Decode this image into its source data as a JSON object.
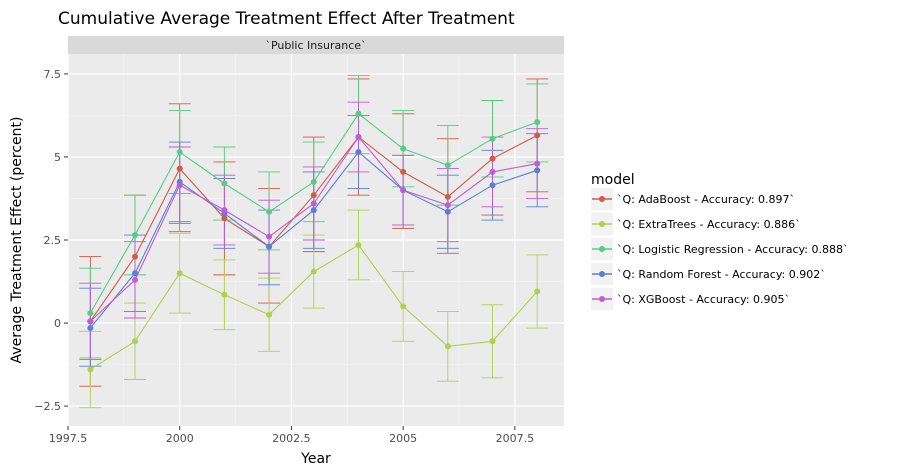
{
  "chart_data": {
    "type": "line",
    "title": "Cumulative Average Treatment Effect After Treatment",
    "facet_label": "`Public Insurance`",
    "xlabel": "Year",
    "ylabel": "Average Treatment Effect (percent)",
    "xlim": [
      1997.5,
      2008.6
    ],
    "ylim": [
      -3.1,
      8.1
    ],
    "x_ticks": [
      1997.5,
      2000,
      2002.5,
      2005,
      2007.5
    ],
    "x_tick_labels": [
      "1997.5",
      "2000",
      "2002.5",
      "2005",
      "2007.5"
    ],
    "y_ticks": [
      -2.5,
      0,
      2.5,
      5,
      7.5
    ],
    "y_tick_labels": [
      "−2.5",
      "0",
      "2.5",
      "5",
      "7.5"
    ],
    "grid": true,
    "legend": {
      "title": "model",
      "position": "right"
    },
    "x": [
      1998,
      1999,
      2000,
      2001,
      2002,
      2003,
      2004,
      2005,
      2006,
      2007,
      2008
    ],
    "series": [
      {
        "name": "`Q: AdaBoost - Accuracy: 0.897`",
        "color": "#d45a45",
        "values": [
          0.05,
          2.0,
          4.65,
          3.15,
          2.3,
          3.85,
          5.6,
          4.55,
          3.8,
          4.95,
          5.65
        ],
        "lower": [
          -1.9,
          0.15,
          2.75,
          1.45,
          0.6,
          2.15,
          3.85,
          2.85,
          2.1,
          3.25,
          3.95
        ],
        "upper": [
          2.0,
          3.85,
          6.6,
          4.85,
          4.05,
          5.6,
          7.35,
          6.3,
          5.55,
          6.7,
          7.35
        ]
      },
      {
        "name": "`Q: ExtraTrees - Accuracy: 0.886`",
        "color": "#b3cf4e",
        "values": [
          -1.4,
          -0.55,
          1.5,
          0.85,
          0.25,
          1.55,
          2.35,
          0.5,
          -0.7,
          -0.55,
          0.95
        ],
        "lower": [
          -2.55,
          -1.7,
          0.3,
          -0.2,
          -0.85,
          0.45,
          1.3,
          -0.55,
          -1.75,
          -1.65,
          -0.15
        ],
        "upper": [
          -0.25,
          0.6,
          2.7,
          1.9,
          1.35,
          2.65,
          3.4,
          1.55,
          0.35,
          0.55,
          2.05
        ]
      },
      {
        "name": "`Q: Logistic Regression - Accuracy: 0.888`",
        "color": "#52d07f",
        "values": [
          0.3,
          2.65,
          5.15,
          4.2,
          3.35,
          4.25,
          6.3,
          5.25,
          4.75,
          5.55,
          6.05
        ],
        "lower": [
          -1.05,
          1.45,
          3.9,
          3.1,
          2.2,
          3.05,
          5.1,
          4.1,
          3.55,
          4.4,
          4.85
        ],
        "upper": [
          1.65,
          3.85,
          6.4,
          5.3,
          4.55,
          5.45,
          7.45,
          6.4,
          5.95,
          6.7,
          7.2
        ]
      },
      {
        "name": "`Q: Random Forest - Accuracy: 0.902`",
        "color": "#5a7fd6",
        "values": [
          -0.15,
          1.5,
          4.25,
          3.3,
          2.3,
          3.4,
          5.15,
          4.0,
          3.35,
          4.15,
          4.6
        ],
        "lower": [
          -1.3,
          0.35,
          3.05,
          2.25,
          1.15,
          2.25,
          4.05,
          2.95,
          2.25,
          3.1,
          3.5
        ],
        "upper": [
          1.05,
          2.65,
          5.45,
          4.35,
          3.4,
          4.55,
          6.25,
          5.05,
          4.45,
          5.2,
          5.7
        ]
      },
      {
        "name": "`Q: XGBoost - Accuracy: 0.905`",
        "color": "#c35bd4",
        "values": [
          0.05,
          1.3,
          4.15,
          3.4,
          2.6,
          3.6,
          5.6,
          4.0,
          3.55,
          4.55,
          4.8
        ],
        "lower": [
          -1.1,
          0.15,
          3.0,
          2.35,
          1.5,
          2.5,
          4.55,
          2.95,
          2.45,
          3.5,
          3.75
        ],
        "upper": [
          1.2,
          2.45,
          5.3,
          4.45,
          3.7,
          4.7,
          6.65,
          5.05,
          4.65,
          5.6,
          5.85
        ]
      }
    ]
  }
}
